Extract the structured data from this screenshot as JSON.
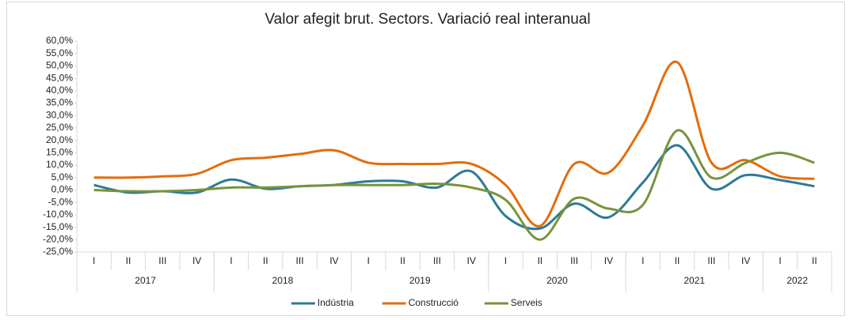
{
  "chart_data": {
    "type": "line",
    "title": "Valor afegit brut.  Sectors. Variació real interanual",
    "categories": [
      "I",
      "II",
      "III",
      "IV",
      "I",
      "II",
      "III",
      "IV",
      "I",
      "II",
      "III",
      "IV",
      "I",
      "II",
      "III",
      "IV",
      "I",
      "II",
      "III",
      "IV",
      "I",
      "II"
    ],
    "groups": [
      {
        "name": "2017",
        "size": 4
      },
      {
        "name": "2018",
        "size": 4
      },
      {
        "name": "2019",
        "size": 4
      },
      {
        "name": "2020",
        "size": 4
      },
      {
        "name": "2021",
        "size": 4
      },
      {
        "name": "2022",
        "size": 2
      }
    ],
    "series": [
      {
        "name": "Indústria",
        "color": "#2e7a95",
        "values": [
          2.0,
          -1.0,
          -0.5,
          -1.0,
          4.2,
          0.5,
          1.5,
          2.0,
          3.5,
          3.5,
          1.0,
          7.5,
          -10.5,
          -15.5,
          -5.5,
          -11.0,
          3.0,
          18.0,
          0.5,
          6.0,
          4.0,
          1.5
        ]
      },
      {
        "name": "Construcció",
        "color": "#e46c0a",
        "values": [
          5.0,
          5.0,
          5.5,
          6.5,
          12.0,
          13.0,
          14.5,
          16.0,
          11.0,
          10.5,
          10.5,
          10.5,
          2.0,
          -14.5,
          10.5,
          7.0,
          26.0,
          51.5,
          11.0,
          12.0,
          5.5,
          4.5
        ]
      },
      {
        "name": "Serveis",
        "color": "#77933c",
        "values": [
          0.0,
          -0.5,
          -0.5,
          0.0,
          1.0,
          1.0,
          1.5,
          2.0,
          2.0,
          2.0,
          2.5,
          1.0,
          -4.0,
          -20.0,
          -3.5,
          -7.5,
          -6.0,
          24.0,
          5.0,
          11.0,
          15.0,
          11.0
        ]
      }
    ],
    "ylim": [
      -25,
      60
    ],
    "yticks": [
      {
        "value": 60,
        "label": "60,0%"
      },
      {
        "value": 55,
        "label": "55,0%"
      },
      {
        "value": 50,
        "label": "50,0%"
      },
      {
        "value": 45,
        "label": "45,0%"
      },
      {
        "value": 40,
        "label": "40,0%"
      },
      {
        "value": 35,
        "label": "35,0%"
      },
      {
        "value": 30,
        "label": "30,0%"
      },
      {
        "value": 25,
        "label": "25,0%"
      },
      {
        "value": 20,
        "label": "20,0%"
      },
      {
        "value": 15,
        "label": "15,0%"
      },
      {
        "value": 10,
        "label": "10,0%"
      },
      {
        "value": 5,
        "label": "5,0%"
      },
      {
        "value": 0,
        "label": "0,0%"
      },
      {
        "value": -5,
        "label": "-5,0%"
      },
      {
        "value": -10,
        "label": "-10,0%"
      },
      {
        "value": -15,
        "label": "-15,0%"
      },
      {
        "value": -20,
        "label": "-20,0%"
      },
      {
        "value": -25,
        "label": "-25,0%"
      }
    ],
    "smooth": true,
    "legend": "bottom"
  }
}
